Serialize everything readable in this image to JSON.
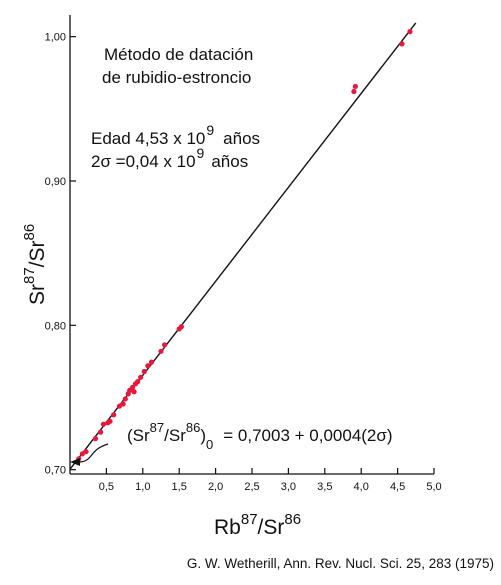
{
  "chart_data": {
    "type": "scatter",
    "title_lines": [
      "Método de datación",
      "de rubidio-estroncio"
    ],
    "age_text": {
      "prefix": "Edad 4,53 x 10",
      "exp": "9",
      "suffix": "años"
    },
    "sigma_text": {
      "prefix": "2σ =0,04 x 10",
      "exp": "9",
      "suffix": "años"
    },
    "xlabel": {
      "base": "Rb",
      "sup1": "87",
      "mid": "/Sr",
      "sup2": "86"
    },
    "ylabel": {
      "base": "Sr",
      "sup1": "87",
      "mid": "/Sr",
      "sup2": "86"
    },
    "intercept_text": {
      "open": "(Sr",
      "sup1": "87",
      "mid": "/Sr",
      "sup2": "86",
      "close": ")",
      "sub": "0",
      "rest": "= 0,7003 + 0,0004(2σ)"
    },
    "source": "G. W. Wetherill, Ann. Rev. Nucl. Sci. 25, 283 (1975)",
    "xlim": [
      0.0,
      5.0
    ],
    "ylim": [
      0.697,
      1.015
    ],
    "x_ticks": [
      0.5,
      1.0,
      1.5,
      2.0,
      2.5,
      3.0,
      3.5,
      4.0,
      4.5,
      5.0
    ],
    "x_tick_labels": [
      "0,5",
      "1,0",
      "1,5",
      "2,0",
      "2,5",
      "3,0",
      "3,5",
      "4,0",
      "4,5",
      "5,0"
    ],
    "y_ticks": [
      0.7,
      0.8,
      0.9,
      1.0
    ],
    "y_tick_labels": [
      "0,70",
      "0,80",
      "0,90",
      "1,00"
    ],
    "isochron": {
      "x": [
        0.0,
        4.75
      ],
      "y": [
        0.7003,
        1.0095
      ]
    },
    "series": [
      {
        "color": "#e8173c",
        "points": [
          {
            "x": 0.12,
            "y": 0.7075
          },
          {
            "x": 0.17,
            "y": 0.711
          },
          {
            "x": 0.22,
            "y": 0.7125
          },
          {
            "x": 0.35,
            "y": 0.7215
          },
          {
            "x": 0.42,
            "y": 0.726
          },
          {
            "x": 0.46,
            "y": 0.7315
          },
          {
            "x": 0.52,
            "y": 0.7325
          },
          {
            "x": 0.55,
            "y": 0.7335
          },
          {
            "x": 0.6,
            "y": 0.738
          },
          {
            "x": 0.68,
            "y": 0.744
          },
          {
            "x": 0.73,
            "y": 0.7455
          },
          {
            "x": 0.76,
            "y": 0.749
          },
          {
            "x": 0.8,
            "y": 0.7525
          },
          {
            "x": 0.82,
            "y": 0.755
          },
          {
            "x": 0.86,
            "y": 0.757
          },
          {
            "x": 0.88,
            "y": 0.754
          },
          {
            "x": 0.9,
            "y": 0.7595
          },
          {
            "x": 0.93,
            "y": 0.761
          },
          {
            "x": 0.97,
            "y": 0.764
          },
          {
            "x": 1.02,
            "y": 0.768
          },
          {
            "x": 1.07,
            "y": 0.772
          },
          {
            "x": 1.12,
            "y": 0.7745
          },
          {
            "x": 1.25,
            "y": 0.782
          },
          {
            "x": 1.3,
            "y": 0.7865
          },
          {
            "x": 1.5,
            "y": 0.7975
          },
          {
            "x": 1.53,
            "y": 0.799
          },
          {
            "x": 3.9,
            "y": 0.962
          },
          {
            "x": 3.92,
            "y": 0.9655
          },
          {
            "x": 4.56,
            "y": 0.995
          },
          {
            "x": 4.67,
            "y": 1.0035
          }
        ]
      }
    ]
  }
}
